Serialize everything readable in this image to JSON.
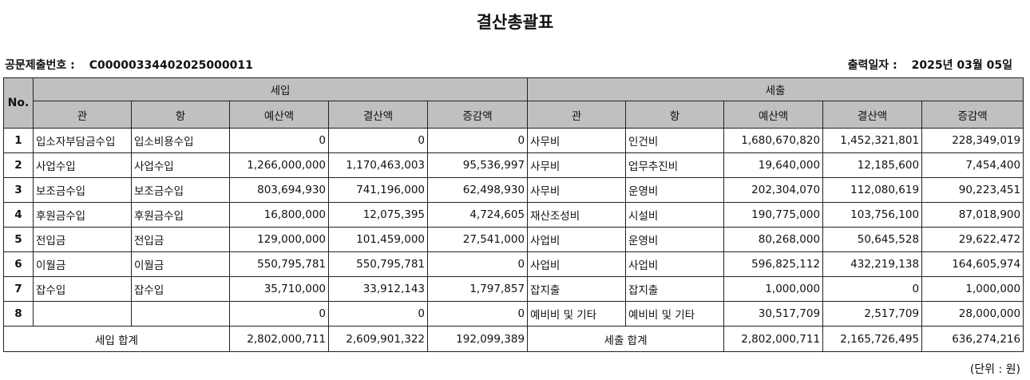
{
  "title": "결산총괄표",
  "doc_no_label": "공문제출번호 :",
  "doc_no": "C00000334402025000011",
  "print_date_label": "출력일자 :",
  "print_date": "2025년 03월 05일",
  "headers": {
    "no": "No.",
    "income": "세입",
    "expense": "세출",
    "gwan": "관",
    "hang": "항",
    "budget": "예산액",
    "settled": "결산액",
    "diff": "증감액"
  },
  "rows": [
    {
      "no": "1",
      "in_gwan": "입소자부담금수입",
      "in_hang": "입소비용수입",
      "in_budget": "0",
      "in_settled": "0",
      "in_diff": "0",
      "ex_gwan": "사무비",
      "ex_hang": "인건비",
      "ex_budget": "1,680,670,820",
      "ex_settled": "1,452,321,801",
      "ex_diff": "228,349,019"
    },
    {
      "no": "2",
      "in_gwan": "사업수입",
      "in_hang": "사업수입",
      "in_budget": "1,266,000,000",
      "in_settled": "1,170,463,003",
      "in_diff": "95,536,997",
      "ex_gwan": "사무비",
      "ex_hang": "업무추진비",
      "ex_budget": "19,640,000",
      "ex_settled": "12,185,600",
      "ex_diff": "7,454,400"
    },
    {
      "no": "3",
      "in_gwan": "보조금수입",
      "in_hang": "보조금수입",
      "in_budget": "803,694,930",
      "in_settled": "741,196,000",
      "in_diff": "62,498,930",
      "ex_gwan": "사무비",
      "ex_hang": "운영비",
      "ex_budget": "202,304,070",
      "ex_settled": "112,080,619",
      "ex_diff": "90,223,451"
    },
    {
      "no": "4",
      "in_gwan": "후원금수입",
      "in_hang": "후원금수입",
      "in_budget": "16,800,000",
      "in_settled": "12,075,395",
      "in_diff": "4,724,605",
      "ex_gwan": "재산조성비",
      "ex_hang": "시설비",
      "ex_budget": "190,775,000",
      "ex_settled": "103,756,100",
      "ex_diff": "87,018,900"
    },
    {
      "no": "5",
      "in_gwan": "전입금",
      "in_hang": "전입금",
      "in_budget": "129,000,000",
      "in_settled": "101,459,000",
      "in_diff": "27,541,000",
      "ex_gwan": "사업비",
      "ex_hang": "운영비",
      "ex_budget": "80,268,000",
      "ex_settled": "50,645,528",
      "ex_diff": "29,622,472"
    },
    {
      "no": "6",
      "in_gwan": "이월금",
      "in_hang": "이월금",
      "in_budget": "550,795,781",
      "in_settled": "550,795,781",
      "in_diff": "0",
      "ex_gwan": "사업비",
      "ex_hang": "사업비",
      "ex_budget": "596,825,112",
      "ex_settled": "432,219,138",
      "ex_diff": "164,605,974"
    },
    {
      "no": "7",
      "in_gwan": "잡수입",
      "in_hang": "잡수입",
      "in_budget": "35,710,000",
      "in_settled": "33,912,143",
      "in_diff": "1,797,857",
      "ex_gwan": "잡지출",
      "ex_hang": "잡지출",
      "ex_budget": "1,000,000",
      "ex_settled": "0",
      "ex_diff": "1,000,000"
    },
    {
      "no": "8",
      "in_gwan": "",
      "in_hang": "",
      "in_budget": "0",
      "in_settled": "0",
      "in_diff": "0",
      "ex_gwan": "예비비 및 기타",
      "ex_hang": "예비비 및 기타",
      "ex_budget": "30,517,709",
      "ex_settled": "2,517,709",
      "ex_diff": "28,000,000"
    }
  ],
  "totals": {
    "in_label": "세입 합계",
    "in_budget": "2,802,000,711",
    "in_settled": "2,609,901,322",
    "in_diff": "192,099,389",
    "ex_label": "세출 합계",
    "ex_budget": "2,802,000,711",
    "ex_settled": "2,165,726,495",
    "ex_diff": "636,274,216"
  },
  "unit": "(단위 : 원)"
}
